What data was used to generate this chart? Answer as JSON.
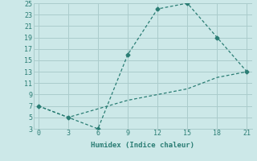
{
  "xlabel": "Humidex (Indice chaleur)",
  "line1_x": [
    0,
    3,
    6,
    9,
    12,
    15,
    18,
    21
  ],
  "line1_y": [
    7,
    5,
    3,
    16,
    24,
    25,
    19,
    13
  ],
  "line2_x": [
    0,
    3,
    6,
    9,
    12,
    15,
    18,
    21
  ],
  "line2_y": [
    7,
    5,
    6.5,
    8,
    9,
    10,
    12,
    13
  ],
  "line_color": "#2a7d74",
  "bg_color": "#cce8e8",
  "grid_color": "#aacccc",
  "xlim": [
    -0.5,
    21.5
  ],
  "ylim": [
    3,
    25
  ],
  "xticks": [
    0,
    3,
    6,
    9,
    12,
    15,
    18,
    21
  ],
  "yticks": [
    3,
    5,
    7,
    9,
    11,
    13,
    15,
    17,
    19,
    21,
    23,
    25
  ],
  "marker_points_line1": [
    0,
    3,
    6,
    9,
    12,
    15,
    18,
    21
  ],
  "marker_y_line1": [
    7,
    5,
    3,
    16,
    24,
    25,
    19,
    13
  ]
}
